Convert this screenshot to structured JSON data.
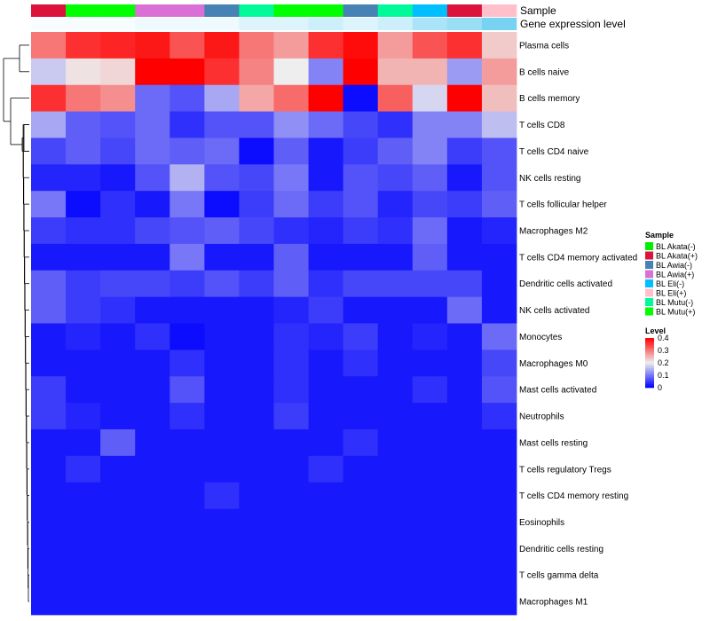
{
  "chart_data": {
    "type": "heatmap",
    "annotation_rows": [
      "Sample",
      "Gene expression level"
    ],
    "columns": [
      {
        "sample": "BL Akata(+)",
        "gene_expression": 0.05
      },
      {
        "sample": "BL Mutu(+)",
        "gene_expression": 0.05
      },
      {
        "sample": "BL Mutu(+)",
        "gene_expression": 0.05
      },
      {
        "sample": "BL Awia(+)",
        "gene_expression": 0.1
      },
      {
        "sample": "BL Awia(+)",
        "gene_expression": 0.1
      },
      {
        "sample": "BL Awia(-)",
        "gene_expression": 0.1
      },
      {
        "sample": "BL Mutu(-)",
        "gene_expression": 0.2
      },
      {
        "sample": "BL Mutu(+)",
        "gene_expression": 0.2
      },
      {
        "sample": "BL Mutu(+)",
        "gene_expression": 0.3
      },
      {
        "sample": "BL Awia(-)",
        "gene_expression": 0.2
      },
      {
        "sample": "BL Mutu(-)",
        "gene_expression": 0.3
      },
      {
        "sample": "BL Eli(-)",
        "gene_expression": 0.5
      },
      {
        "sample": "BL Akata(+)",
        "gene_expression": 0.6
      },
      {
        "sample": "BL Eli(+)",
        "gene_expression": 0.8
      }
    ],
    "rows": [
      "Plasma cells",
      "B cells naive",
      "B cells memory",
      "T cells CD8",
      "T cells CD4 naive",
      "NK cells resting",
      "T cells follicular helper",
      "Macrophages M2",
      "T cells CD4 memory activated",
      "Dendritic cells activated",
      "NK cells activated",
      "Monocytes",
      "Macrophages M0",
      "Mast cells activated",
      "Neutrophils",
      "Mast cells resting",
      "T cells regulatory  Tregs",
      "T cells CD4 memory resting",
      "Eosinophils",
      "Dendritic cells resting",
      "T cells gamma delta",
      "Macrophages M1"
    ],
    "values": [
      [
        0.3,
        0.36,
        0.37,
        0.38,
        0.33,
        0.38,
        0.3,
        0.27,
        0.36,
        0.39,
        0.27,
        0.33,
        0.36,
        0.23
      ],
      [
        0.17,
        0.21,
        0.22,
        0.4,
        0.4,
        0.36,
        0.29,
        0.2,
        0.11,
        0.4,
        0.25,
        0.25,
        0.13,
        0.27
      ],
      [
        0.36,
        0.3,
        0.28,
        0.09,
        0.07,
        0.14,
        0.26,
        0.31,
        0.4,
        0.01,
        0.32,
        0.18,
        0.4,
        0.24
      ],
      [
        0.14,
        0.08,
        0.07,
        0.09,
        0.04,
        0.07,
        0.07,
        0.12,
        0.09,
        0.06,
        0.04,
        0.11,
        0.11,
        0.16
      ],
      [
        0.06,
        0.08,
        0.06,
        0.09,
        0.08,
        0.09,
        0.01,
        0.08,
        0.02,
        0.05,
        0.08,
        0.11,
        0.05,
        0.07
      ],
      [
        0.03,
        0.03,
        0.02,
        0.07,
        0.15,
        0.07,
        0.06,
        0.1,
        0.02,
        0.07,
        0.06,
        0.08,
        0.02,
        0.07
      ],
      [
        0.1,
        0.01,
        0.04,
        0.02,
        0.1,
        0.01,
        0.05,
        0.09,
        0.05,
        0.07,
        0.03,
        0.06,
        0.05,
        0.08
      ],
      [
        0.05,
        0.04,
        0.04,
        0.06,
        0.07,
        0.08,
        0.06,
        0.04,
        0.03,
        0.05,
        0.04,
        0.09,
        0.02,
        0.03
      ],
      [
        0.02,
        0.02,
        0.02,
        0.02,
        0.1,
        0.02,
        0.02,
        0.08,
        0.02,
        0.02,
        0.02,
        0.08,
        0.02,
        0.02
      ],
      [
        0.08,
        0.05,
        0.06,
        0.06,
        0.05,
        0.07,
        0.05,
        0.08,
        0.04,
        0.06,
        0.06,
        0.06,
        0.06,
        0.02
      ],
      [
        0.08,
        0.05,
        0.04,
        0.02,
        0.02,
        0.02,
        0.02,
        0.03,
        0.05,
        0.02,
        0.02,
        0.02,
        0.09,
        0.02
      ],
      [
        0.02,
        0.03,
        0.02,
        0.04,
        0.01,
        0.02,
        0.02,
        0.04,
        0.03,
        0.05,
        0.02,
        0.03,
        0.02,
        0.09
      ],
      [
        0.02,
        0.02,
        0.02,
        0.02,
        0.04,
        0.02,
        0.02,
        0.04,
        0.02,
        0.04,
        0.02,
        0.02,
        0.02,
        0.06
      ],
      [
        0.05,
        0.02,
        0.02,
        0.02,
        0.07,
        0.02,
        0.02,
        0.04,
        0.02,
        0.02,
        0.02,
        0.04,
        0.02,
        0.07
      ],
      [
        0.05,
        0.03,
        0.02,
        0.02,
        0.04,
        0.02,
        0.02,
        0.05,
        0.02,
        0.02,
        0.02,
        0.02,
        0.02,
        0.04
      ],
      [
        0.02,
        0.02,
        0.08,
        0.02,
        0.02,
        0.02,
        0.02,
        0.02,
        0.02,
        0.04,
        0.02,
        0.02,
        0.02,
        0.02
      ],
      [
        0.02,
        0.04,
        0.02,
        0.02,
        0.02,
        0.02,
        0.02,
        0.02,
        0.04,
        0.02,
        0.02,
        0.02,
        0.02,
        0.02
      ],
      [
        0.02,
        0.02,
        0.02,
        0.02,
        0.02,
        0.04,
        0.02,
        0.02,
        0.02,
        0.02,
        0.02,
        0.02,
        0.02,
        0.02
      ],
      [
        0.02,
        0.02,
        0.02,
        0.02,
        0.02,
        0.02,
        0.02,
        0.02,
        0.02,
        0.02,
        0.02,
        0.02,
        0.02,
        0.02
      ],
      [
        0.02,
        0.02,
        0.02,
        0.02,
        0.02,
        0.02,
        0.02,
        0.02,
        0.02,
        0.02,
        0.02,
        0.02,
        0.02,
        0.02
      ],
      [
        0.02,
        0.02,
        0.02,
        0.02,
        0.02,
        0.02,
        0.02,
        0.02,
        0.02,
        0.02,
        0.02,
        0.02,
        0.02,
        0.02
      ],
      [
        0.02,
        0.02,
        0.02,
        0.02,
        0.02,
        0.02,
        0.02,
        0.02,
        0.02,
        0.02,
        0.02,
        0.02,
        0.02,
        0.02
      ]
    ],
    "color_scale": {
      "stops": [
        {
          "value": 0,
          "color": "#0000ff"
        },
        {
          "value": 0.2,
          "color": "#eeeeee"
        },
        {
          "value": 0.4,
          "color": "#ff0000"
        }
      ]
    },
    "gene_expression_scale": {
      "low": "#ffffff",
      "high": "#56c8f0"
    },
    "legends": {
      "sample": {
        "title": "Sample",
        "entries": [
          {
            "label": "BL Akata(-)",
            "color": "#00ee00"
          },
          {
            "label": "BL Akata(+)",
            "color": "#dc143c"
          },
          {
            "label": "BL Awia(-)",
            "color": "#4682b4"
          },
          {
            "label": "BL Awia(+)",
            "color": "#da70d6"
          },
          {
            "label": "BL Eli(-)",
            "color": "#00bfff"
          },
          {
            "label": "BL Eli(+)",
            "color": "#ffc0cb"
          },
          {
            "label": "BL Mutu(-)",
            "color": "#00fa9a"
          },
          {
            "label": "BL Mutu(+)",
            "color": "#00ff00"
          }
        ]
      },
      "level": {
        "title": "Level",
        "ticks": [
          {
            "value": 0.4,
            "label": "0.4"
          },
          {
            "value": 0.3,
            "label": "0.3"
          },
          {
            "value": 0.2,
            "label": "0.2"
          },
          {
            "value": 0.1,
            "label": "0.1"
          },
          {
            "value": 0,
            "label": "0"
          }
        ]
      }
    },
    "dendrogram": "rows clustered (left side)"
  }
}
